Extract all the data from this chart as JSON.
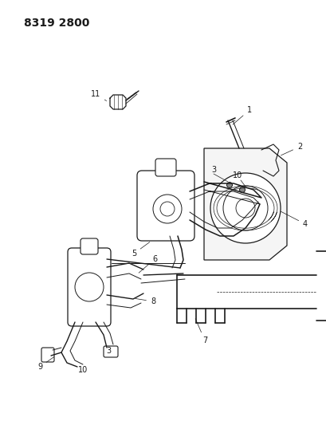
{
  "title": "8319 2800",
  "bg": "#ffffff",
  "lc": "#1a1a1a",
  "fig_w": 4.1,
  "fig_h": 5.33,
  "dpi": 100,
  "title_fs": 10,
  "label_fs": 7
}
